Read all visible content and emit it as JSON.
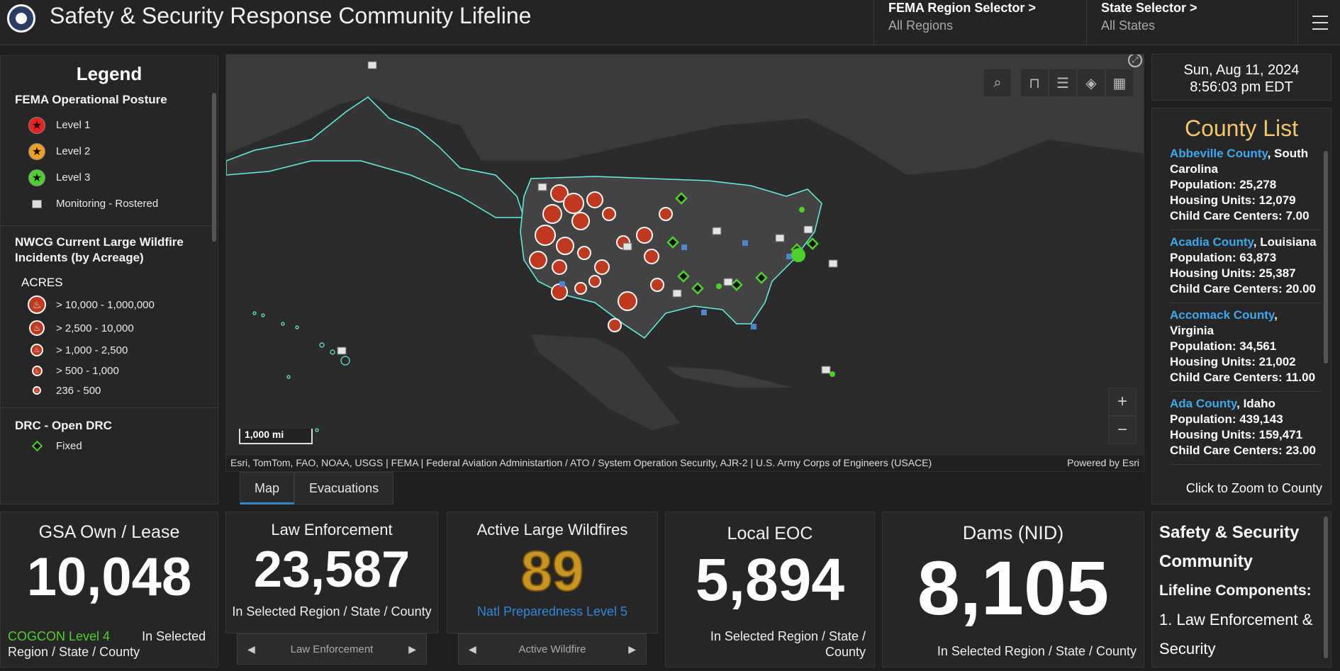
{
  "header": {
    "title": "Safety & Security Response Community Lifeline",
    "region_label": "FEMA Region Selector >",
    "region_value": "All Regions",
    "state_label": "State Selector >",
    "state_value": "All States"
  },
  "legend": {
    "title": "Legend",
    "posture_title": "FEMA Operational Posture",
    "posture_items": [
      "Level 1",
      "Level 2",
      "Level 3",
      "Monitoring - Rostered"
    ],
    "wildfire_title": "NWCG Current Large Wildfire Incidents (by Acreage)",
    "acres_label": "ACRES",
    "wildfire_items": [
      "> 10,000 - 1,000,000",
      "> 2,500 - 10,000",
      "> 1,000 - 2,500",
      "> 500 - 1,000",
      "236 - 500"
    ],
    "drc_title": "DRC - Open DRC",
    "drc_items": [
      "Fixed"
    ],
    "colors": {
      "level1": "#e8231d",
      "level2": "#f0a11b",
      "level3": "#4dd12a",
      "fire": "#c1381c"
    }
  },
  "map": {
    "scale_label": "1,000 mi",
    "attribution": "Esri, TomTom, FAO, NOAA, USGS | FEMA | Federal Aviation Administartion / ATO / System Operation Security, AJR-2 | U.S. Army Corps of Engineers (USACE)",
    "powered_by": "Powered by Esri",
    "tool_icons": [
      "search-icon",
      "bookmark-icon",
      "list-icon",
      "layers-icon",
      "qr-grid-icon"
    ]
  },
  "tabs": [
    "Map",
    "Evacuations"
  ],
  "datetime": {
    "date": "Sun, Aug 11, 2024",
    "time": "8:56:03 pm EDT"
  },
  "county_list": {
    "title": "County List",
    "footer": "Click to Zoom to County",
    "pop_label": "Population:",
    "housing_label": "Housing Units:",
    "child_label": "Child Care Centers:",
    "items": [
      {
        "county": "Abbeville County",
        "state": ", South Carolina",
        "population": "25,278",
        "housing": "12,079",
        "child": "7.00"
      },
      {
        "county": "Acadia County",
        "state": ", Louisiana",
        "population": "63,873",
        "housing": "25,387",
        "child": "20.00"
      },
      {
        "county": "Accomack County",
        "state": ", Virginia",
        "population": "34,561",
        "housing": "21,002",
        "child": "11.00"
      },
      {
        "county": "Ada County",
        "state": ", Idaho",
        "population": "439,143",
        "housing": "159,471",
        "child": "23.00"
      }
    ]
  },
  "indicators": {
    "gsa": {
      "title": "GSA Own / Lease",
      "value": "10,048",
      "cogcon": "COGCON Level 4",
      "sub": "In Selected Region / State / County"
    },
    "law": {
      "title": "Law Enforcement",
      "value": "23,587",
      "sub": "In Selected Region / State / County",
      "nav": "Law Enforcement"
    },
    "wildfire": {
      "title": "Active Large Wildfires",
      "value": "89",
      "sub": "Natl Preparedness Level 5",
      "nav": "Active Wildfire"
    },
    "eoc": {
      "title": "Local EOC",
      "value": "5,894",
      "sub": "In Selected Region / State / County"
    },
    "dams": {
      "title": "Dams (NID)",
      "value": "8,105",
      "sub": "In Selected Region / State / County"
    }
  },
  "info": {
    "title_lines": [
      "Safety & Security",
      "Community",
      "Lifeline Components:"
    ],
    "components": [
      "1. Law Enforcement &",
      "Security"
    ]
  }
}
